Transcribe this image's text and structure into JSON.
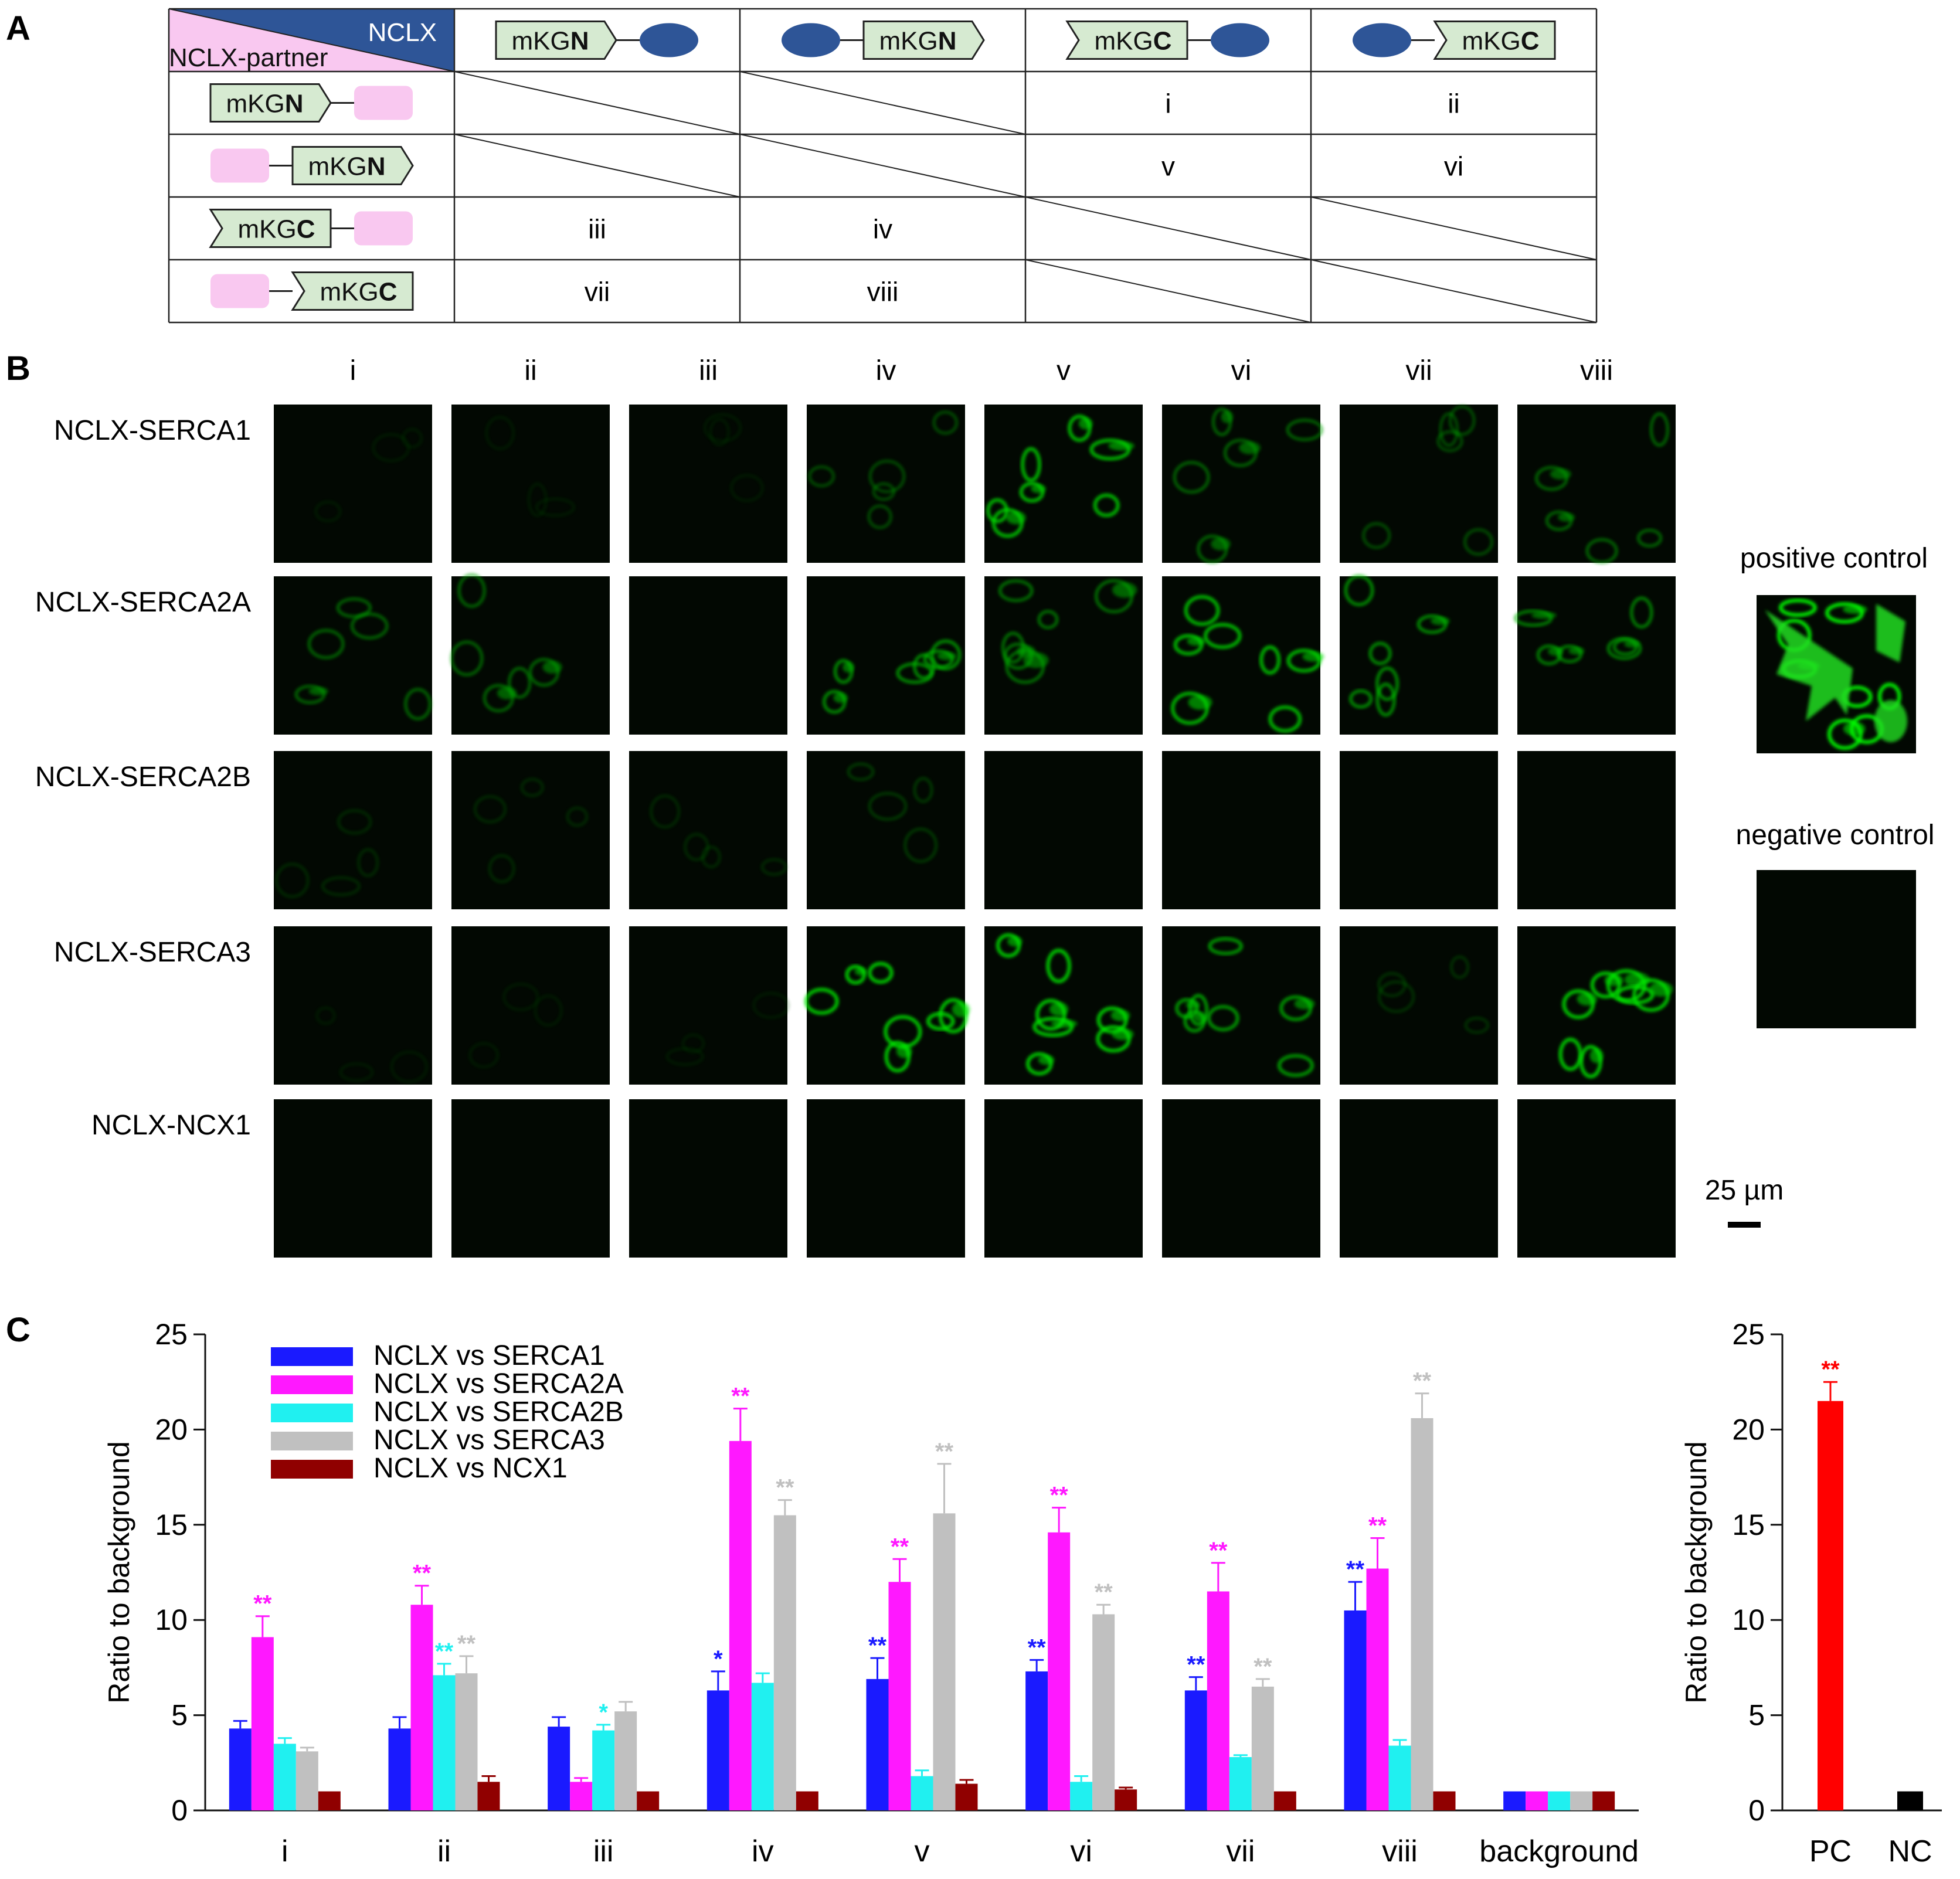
{
  "panel_letters": {
    "a": "A",
    "b": "B",
    "c": "C"
  },
  "panel_a": {
    "corner_top": "NCLX",
    "corner_bottom": "NCLX-partner",
    "column_headers": [
      {
        "prefix": "mKG",
        "suffix": "N",
        "tag": "N",
        "order": "tag-first"
      },
      {
        "prefix": "mKG",
        "suffix": "N",
        "tag": "N",
        "order": "protein-first"
      },
      {
        "prefix": "mKG",
        "suffix": "C",
        "tag": "C",
        "order": "tag-first"
      },
      {
        "prefix": "mKG",
        "suffix": "C",
        "tag": "C",
        "order": "protein-first"
      }
    ],
    "row_headers": [
      {
        "prefix": "mKG",
        "suffix": "N",
        "tag": "N",
        "order": "tag-first"
      },
      {
        "prefix": "mKG",
        "suffix": "N",
        "tag": "N",
        "order": "protein-first"
      },
      {
        "prefix": "mKG",
        "suffix": "C",
        "tag": "C",
        "order": "tag-first"
      },
      {
        "prefix": "mKG",
        "suffix": "C",
        "tag": "C",
        "order": "protein-first"
      }
    ],
    "cells": [
      [
        "",
        "",
        "i",
        "ii"
      ],
      [
        "",
        "",
        "v",
        "vi"
      ],
      [
        "iii",
        "iv",
        "",
        ""
      ],
      [
        "vii",
        "viii",
        "",
        ""
      ]
    ],
    "colors": {
      "nclx": "#2e5597",
      "partner": "#f9c8f0",
      "tag_fill": "#d6ead1"
    }
  },
  "panel_b": {
    "column_labels": [
      "i",
      "ii",
      "iii",
      "iv",
      "v",
      "vi",
      "vii",
      "viii"
    ],
    "row_labels": [
      "NCLX-SERCA1",
      "NCLX-SERCA2A",
      "NCLX-SERCA2B",
      "NCLX-SERCA3",
      "NCLX-NCX1"
    ],
    "intensity": [
      [
        0.12,
        0.12,
        0.12,
        0.45,
        0.85,
        0.55,
        0.45,
        0.55
      ],
      [
        0.55,
        0.55,
        0.0,
        0.7,
        0.6,
        0.85,
        0.7,
        0.65
      ],
      [
        0.25,
        0.25,
        0.25,
        0.35,
        0.0,
        0.0,
        0.0,
        0.0
      ],
      [
        0.12,
        0.12,
        0.12,
        0.9,
        0.9,
        0.75,
        0.3,
        0.9
      ],
      [
        0.0,
        0.0,
        0.0,
        0.0,
        0.0,
        0.0,
        0.0,
        0.0
      ]
    ],
    "positive_control_label": "positive control",
    "negative_control_label": "negative control",
    "scale_bar_label": "25 µm"
  },
  "panel_c": {
    "legend": [
      "NCLX vs SERCA1",
      "NCLX vs SERCA2A",
      "NCLX vs SERCA2B",
      "NCLX vs SERCA3",
      "NCLX vs NCX1"
    ]
  },
  "chart_data": [
    {
      "type": "bar",
      "ylabel": "Ratio to background",
      "ylim": [
        0,
        25
      ],
      "yticks": [
        0,
        5,
        10,
        15,
        20,
        25
      ],
      "categories": [
        "i",
        "ii",
        "iii",
        "iv",
        "v",
        "vi",
        "vii",
        "viii",
        "background"
      ],
      "series": [
        {
          "name": "NCLX vs SERCA1",
          "color": "#1a1aff",
          "values": [
            4.3,
            4.3,
            4.4,
            6.3,
            6.9,
            7.3,
            6.3,
            10.5,
            1.0
          ],
          "errors": [
            0.4,
            0.6,
            0.5,
            1.0,
            1.1,
            0.6,
            0.7,
            1.5,
            0
          ],
          "stars": [
            "",
            "",
            "",
            "*",
            "**",
            "**",
            "**",
            "**",
            ""
          ]
        },
        {
          "name": "NCLX vs SERCA2A",
          "color": "#ff18ff",
          "values": [
            9.1,
            10.8,
            1.5,
            19.4,
            12.0,
            14.6,
            11.5,
            12.7,
            1.0
          ],
          "errors": [
            1.1,
            1.0,
            0.2,
            1.7,
            1.2,
            1.3,
            1.5,
            1.6,
            0
          ],
          "stars": [
            "**",
            "**",
            "",
            "**",
            "**",
            "**",
            "**",
            "**",
            ""
          ]
        },
        {
          "name": "NCLX vs SERCA2B",
          "color": "#20f0f0",
          "values": [
            3.5,
            7.1,
            4.2,
            6.7,
            1.8,
            1.5,
            2.8,
            3.4,
            1.0
          ],
          "errors": [
            0.3,
            0.6,
            0.3,
            0.5,
            0.3,
            0.3,
            0.1,
            0.3,
            0
          ],
          "stars": [
            "",
            "**",
            "*",
            "",
            "",
            "",
            "",
            "",
            ""
          ]
        },
        {
          "name": "NCLX vs SERCA3",
          "color": "#c0c0c0",
          "values": [
            3.1,
            7.2,
            5.2,
            15.5,
            15.6,
            10.3,
            6.5,
            20.6,
            1.0
          ],
          "errors": [
            0.2,
            0.9,
            0.5,
            0.8,
            2.6,
            0.5,
            0.4,
            1.3,
            0
          ],
          "stars": [
            "",
            "**",
            "",
            "**",
            "**",
            "**",
            "**",
            "**",
            ""
          ]
        },
        {
          "name": "NCLX vs NCX1",
          "color": "#900000",
          "values": [
            1.0,
            1.5,
            1.0,
            1.0,
            1.4,
            1.1,
            1.0,
            1.0,
            1.0
          ],
          "errors": [
            0,
            0.3,
            0,
            0,
            0.2,
            0.1,
            0,
            0,
            0
          ],
          "stars": [
            "",
            "",
            "",
            "",
            "",
            "",
            "",
            "",
            ""
          ]
        }
      ]
    },
    {
      "type": "bar",
      "ylabel": "Ratio to background",
      "ylim": [
        0,
        25
      ],
      "yticks": [
        0,
        5,
        10,
        15,
        20,
        25
      ],
      "categories": [
        "PC",
        "NC"
      ],
      "values": [
        21.5,
        1.0
      ],
      "errors": [
        1.0,
        0
      ],
      "colors": [
        "#ff0000",
        "#000000"
      ],
      "stars": [
        "**",
        ""
      ]
    }
  ]
}
